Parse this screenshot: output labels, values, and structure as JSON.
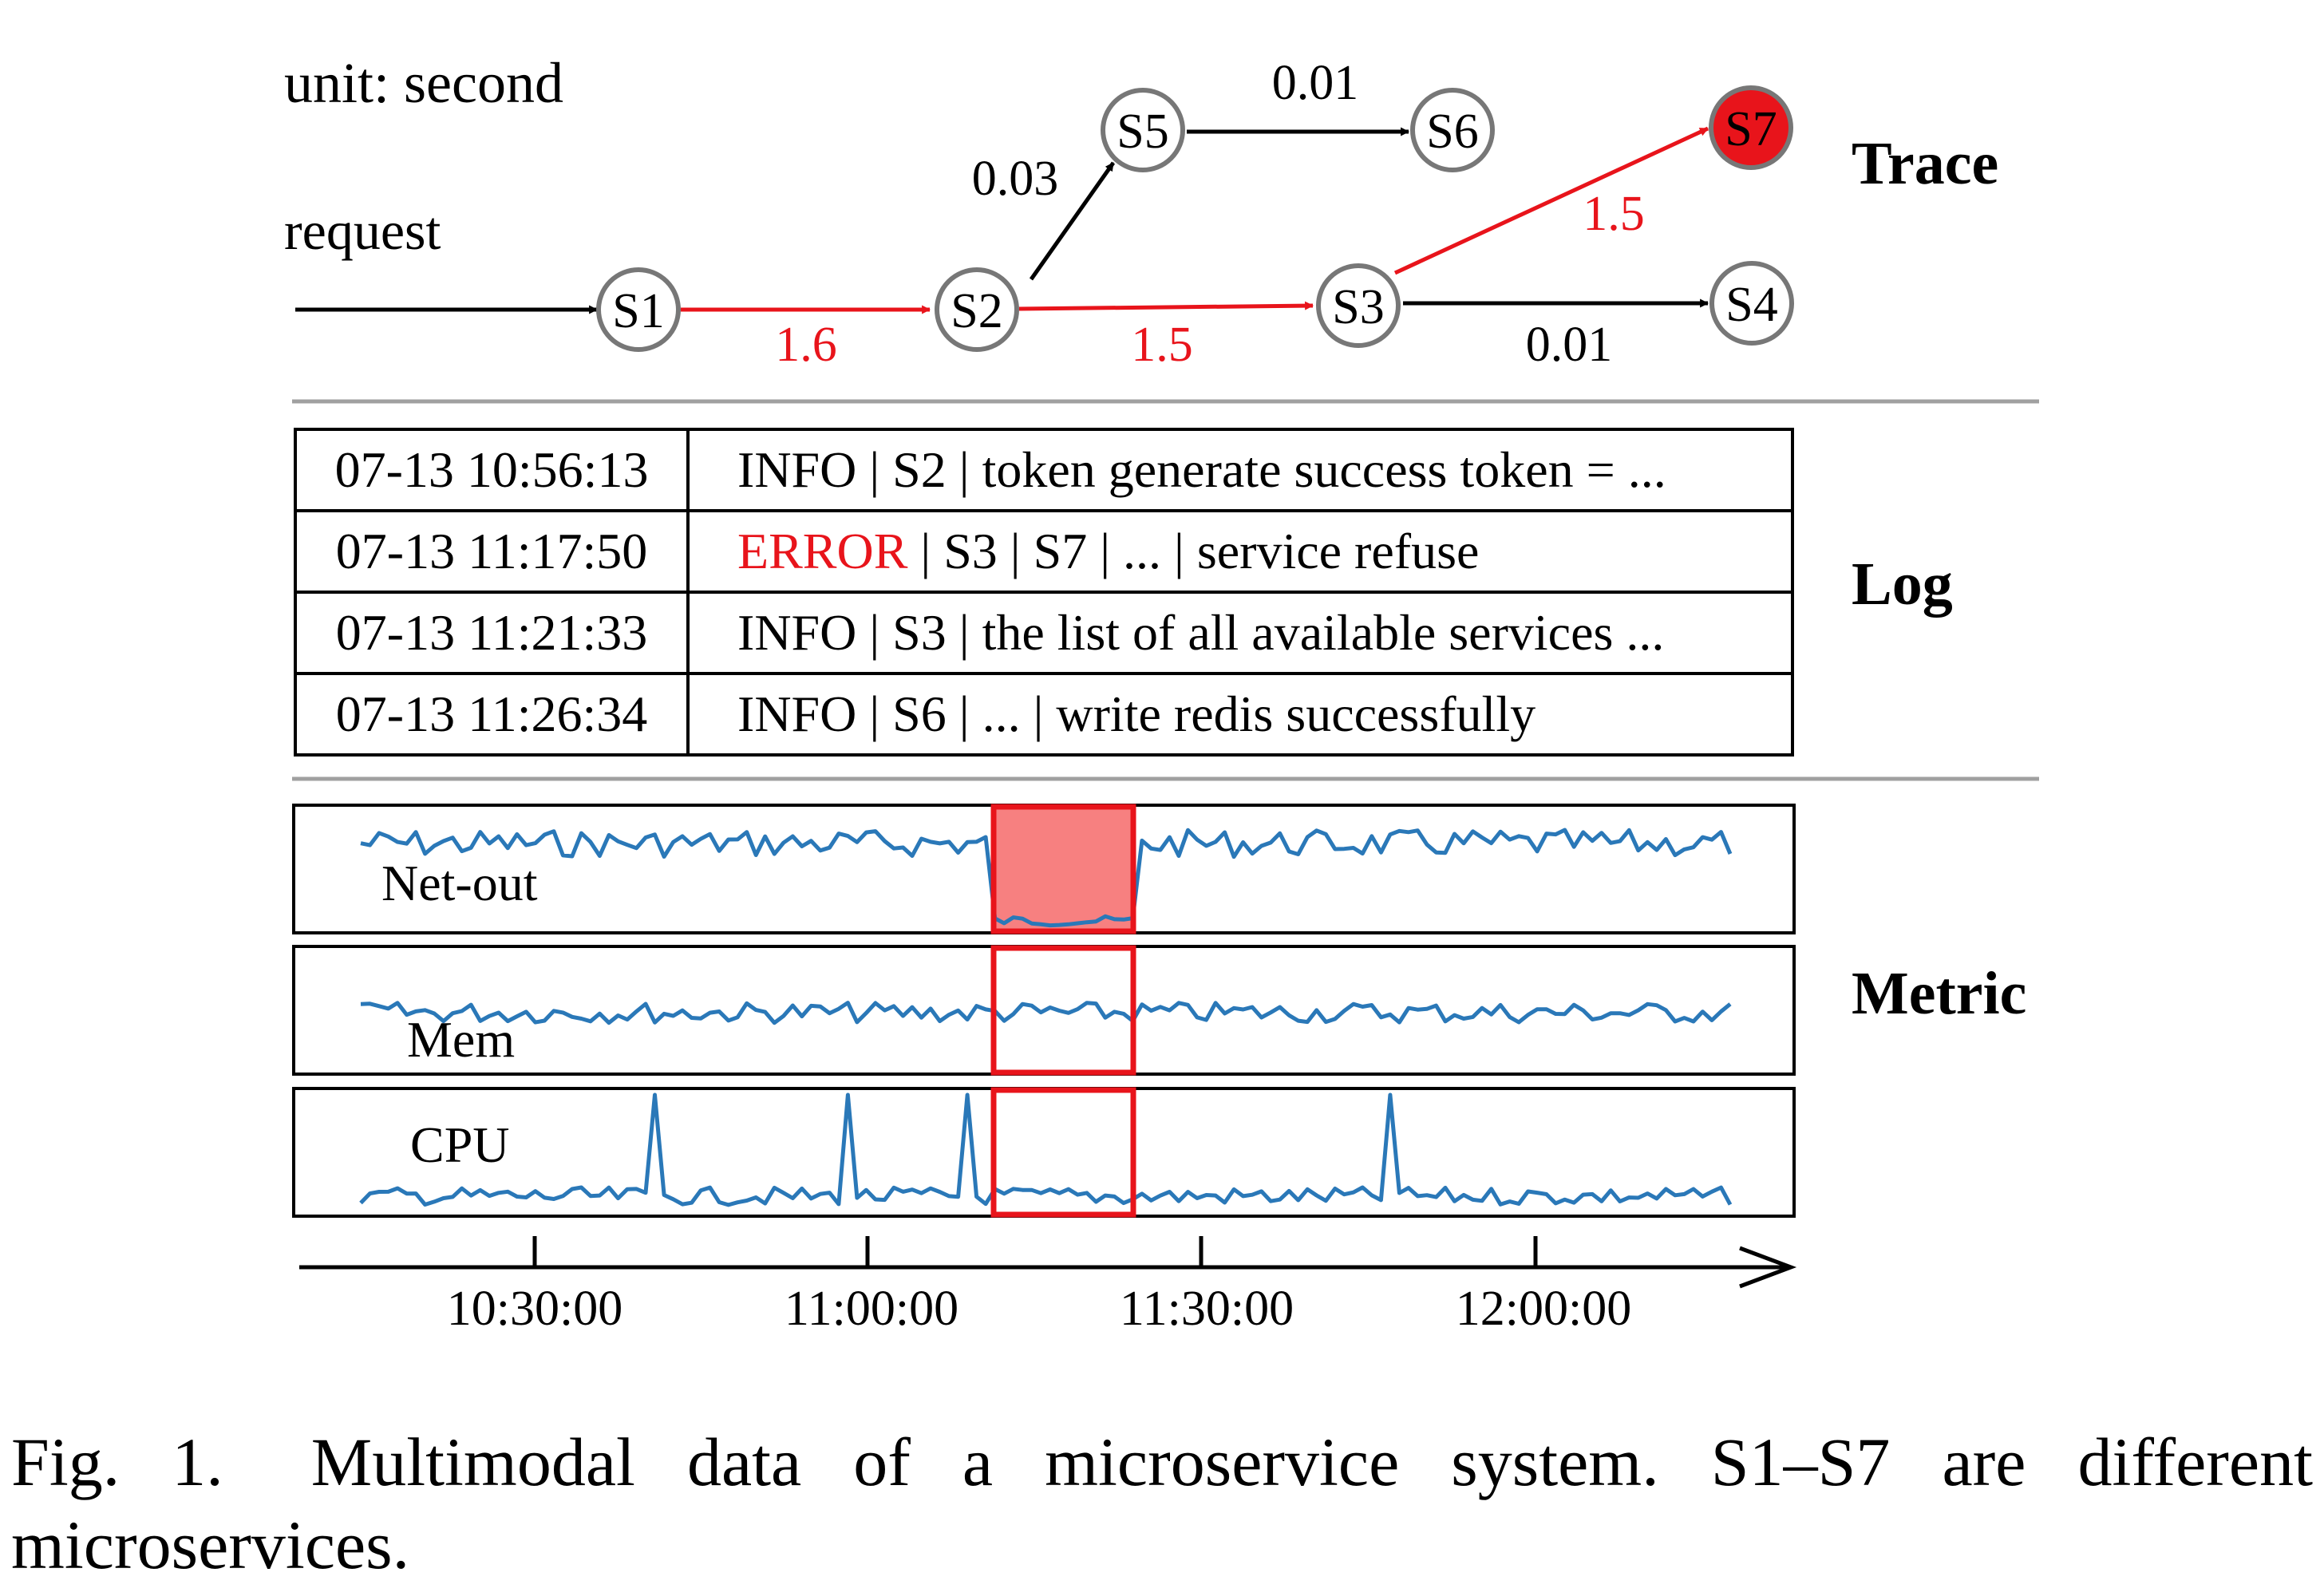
{
  "trace": {
    "unit_label": "unit: second",
    "request_label": "request",
    "section_label": "Trace",
    "nodes": [
      {
        "id": "S1",
        "label": "S1",
        "failed": false
      },
      {
        "id": "S2",
        "label": "S2",
        "failed": false
      },
      {
        "id": "S3",
        "label": "S3",
        "failed": false
      },
      {
        "id": "S4",
        "label": "S4",
        "failed": false
      },
      {
        "id": "S5",
        "label": "S5",
        "failed": false
      },
      {
        "id": "S6",
        "label": "S6",
        "failed": false
      },
      {
        "id": "S7",
        "label": "S7",
        "failed": true
      }
    ],
    "edges": [
      {
        "from": "request",
        "to": "S1",
        "latency": "",
        "critical": false
      },
      {
        "from": "S1",
        "to": "S2",
        "latency": "1.6",
        "critical": true
      },
      {
        "from": "S2",
        "to": "S3",
        "latency": "1.5",
        "critical": true
      },
      {
        "from": "S2",
        "to": "S5",
        "latency": "0.03",
        "critical": false
      },
      {
        "from": "S5",
        "to": "S6",
        "latency": "0.01",
        "critical": false
      },
      {
        "from": "S3",
        "to": "S7",
        "latency": "1.5",
        "critical": true
      },
      {
        "from": "S3",
        "to": "S4",
        "latency": "0.01",
        "critical": false
      }
    ]
  },
  "log": {
    "section_label": "Log",
    "rows": [
      {
        "timestamp": "07-13 10:56:13",
        "level": "INFO",
        "message": " | S2 | token generate success token = ..."
      },
      {
        "timestamp": "07-13 11:17:50",
        "level": "ERROR",
        "message": " | S3 | S7 | ... | service refuse"
      },
      {
        "timestamp": "07-13 11:21:33",
        "level": "INFO",
        "message": " | S3 | the list of all available services ..."
      },
      {
        "timestamp": "07-13 11:26:34",
        "level": "INFO",
        "message": " | S6 | ... | write redis successfully"
      }
    ]
  },
  "metric": {
    "section_label": "Metric",
    "panels": [
      {
        "name": "Net-out"
      },
      {
        "name": "Mem"
      },
      {
        "name": "CPU"
      }
    ],
    "anomaly_window": {
      "start": "11:12",
      "end": "11:25"
    },
    "time_axis": {
      "ticks": [
        "10:30:00",
        "11:00:00",
        "11:30:00",
        "12:00:00"
      ]
    }
  },
  "caption": {
    "label": "Fig. 1.",
    "text": "Multimodal data of a microservice system. S1–S7 are different microservices."
  },
  "colors": {
    "critical": "#e8141b",
    "series": "#2a78b8",
    "node_border": "#777777",
    "divider": "#a0a0a0",
    "anomaly_fill": "#f78080"
  }
}
